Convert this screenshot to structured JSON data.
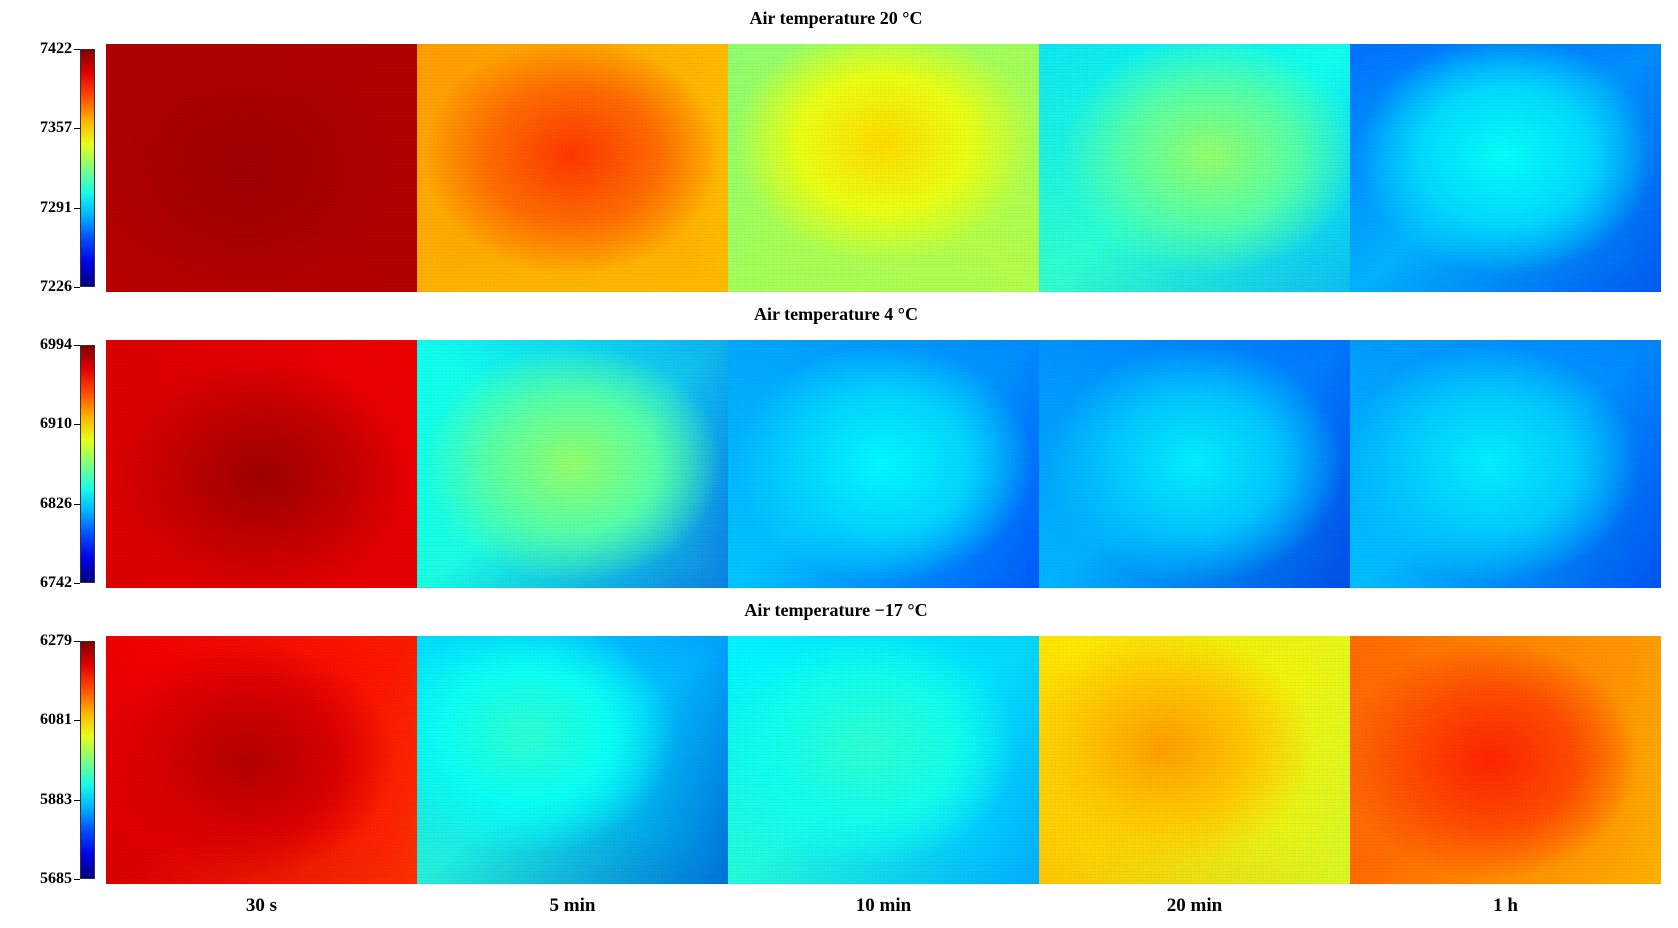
{
  "chart_data": {
    "type": "heatmap",
    "colormap": "jet",
    "columns": [
      "30 s",
      "5 min",
      "10 min",
      "20 min",
      "1 h"
    ],
    "rows": [
      {
        "title": "Air temperature 20 °C",
        "colorbar_ticks": [
          "7422",
          "7357",
          "7291",
          "7226"
        ],
        "clim": [
          7226,
          7422
        ],
        "panels": [
          {
            "base": 0.95,
            "peak": 0.97,
            "cx": 0.45,
            "cy": 0.5,
            "edge_tl": 0.96,
            "edge_tr": 0.95,
            "edge_bl": 0.94,
            "edge_br": 0.95
          },
          {
            "base": 0.72,
            "peak": 0.82,
            "cx": 0.5,
            "cy": 0.45,
            "edge_tl": 0.72,
            "edge_tr": 0.66,
            "edge_bl": 0.68,
            "edge_br": 0.66
          },
          {
            "base": 0.55,
            "peak": 0.66,
            "cx": 0.5,
            "cy": 0.4,
            "edge_tl": 0.48,
            "edge_tr": 0.52,
            "edge_bl": 0.52,
            "edge_br": 0.55
          },
          {
            "base": 0.4,
            "peak": 0.52,
            "cx": 0.55,
            "cy": 0.45,
            "edge_tl": 0.33,
            "edge_tr": 0.38,
            "edge_bl": 0.45,
            "edge_br": 0.25
          },
          {
            "base": 0.3,
            "peak": 0.38,
            "cx": 0.5,
            "cy": 0.45,
            "edge_tl": 0.17,
            "edge_tr": 0.22,
            "edge_bl": 0.3,
            "edge_br": 0.1
          }
        ]
      },
      {
        "title": "Air temperature 4 °C",
        "colorbar_ticks": [
          "6994",
          "6910",
          "6826",
          "6742"
        ],
        "clim": [
          6742,
          6994
        ],
        "panels": [
          {
            "base": 0.9,
            "peak": 0.97,
            "cx": 0.5,
            "cy": 0.55,
            "edge_tl": 0.92,
            "edge_tr": 0.88,
            "edge_bl": 0.92,
            "edge_br": 0.9
          },
          {
            "base": 0.4,
            "peak": 0.52,
            "cx": 0.5,
            "cy": 0.5,
            "edge_tl": 0.38,
            "edge_tr": 0.22,
            "edge_bl": 0.4,
            "edge_br": 0.1
          },
          {
            "base": 0.3,
            "peak": 0.37,
            "cx": 0.5,
            "cy": 0.5,
            "edge_tl": 0.28,
            "edge_tr": 0.22,
            "edge_bl": 0.34,
            "edge_br": 0.12
          },
          {
            "base": 0.28,
            "peak": 0.36,
            "cx": 0.5,
            "cy": 0.5,
            "edge_tl": 0.26,
            "edge_tr": 0.2,
            "edge_bl": 0.33,
            "edge_br": 0.08
          },
          {
            "base": 0.29,
            "peak": 0.36,
            "cx": 0.45,
            "cy": 0.5,
            "edge_tl": 0.27,
            "edge_tr": 0.22,
            "edge_bl": 0.34,
            "edge_br": 0.1
          }
        ]
      },
      {
        "title": "Air temperature −17 °C",
        "colorbar_ticks": [
          "6279",
          "6081",
          "5883",
          "5685"
        ],
        "clim": [
          5685,
          6279
        ],
        "panels": [
          {
            "base": 0.88,
            "peak": 0.95,
            "cx": 0.45,
            "cy": 0.5,
            "edge_tl": 0.9,
            "edge_tr": 0.82,
            "edge_bl": 0.95,
            "edge_br": 0.78
          },
          {
            "base": 0.35,
            "peak": 0.42,
            "cx": 0.35,
            "cy": 0.4,
            "edge_tl": 0.34,
            "edge_tr": 0.22,
            "edge_bl": 0.45,
            "edge_br": 0.05
          },
          {
            "base": 0.37,
            "peak": 0.42,
            "cx": 0.45,
            "cy": 0.45,
            "edge_tl": 0.36,
            "edge_tr": 0.3,
            "edge_bl": 0.45,
            "edge_br": 0.22
          },
          {
            "base": 0.64,
            "peak": 0.72,
            "cx": 0.4,
            "cy": 0.45,
            "edge_tl": 0.66,
            "edge_tr": 0.58,
            "edge_bl": 0.72,
            "edge_br": 0.55
          },
          {
            "base": 0.76,
            "peak": 0.84,
            "cx": 0.45,
            "cy": 0.5,
            "edge_tl": 0.78,
            "edge_tr": 0.68,
            "edge_bl": 0.78,
            "edge_br": 0.64
          }
        ]
      }
    ]
  }
}
